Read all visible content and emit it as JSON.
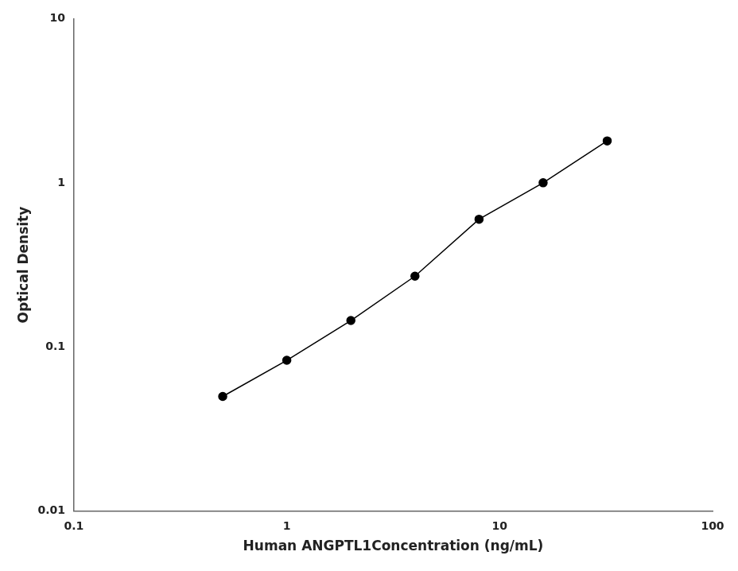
{
  "chart_data": {
    "type": "line",
    "x": [
      0.5,
      1.0,
      2.0,
      4.0,
      8.0,
      16.0,
      32.0
    ],
    "values": [
      0.05,
      0.083,
      0.145,
      0.27,
      0.6,
      1.0,
      1.8
    ],
    "xlabel": "Human ANGPTL1Concentration (ng/mL)",
    "ylabel": "Optical Density",
    "xlim": [
      0.1,
      100
    ],
    "ylim": [
      0.01,
      10
    ],
    "xticks": [
      0.1,
      1,
      10,
      100
    ],
    "yticks": [
      0.01,
      0.1,
      1,
      10
    ],
    "log": true,
    "grid": false,
    "color": "#000000",
    "marker": "circle"
  }
}
